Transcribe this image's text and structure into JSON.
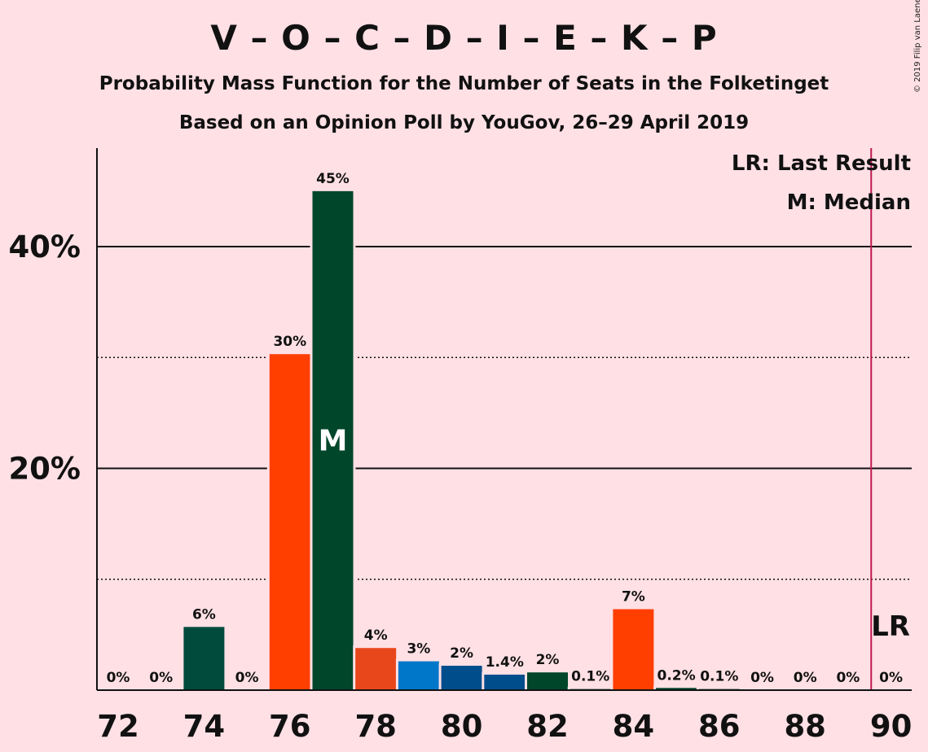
{
  "header": {
    "title": "V – O – C – D – I – E – K – P",
    "subtitle1": "Probability Mass Function for the Number of Seats in the Folketinget",
    "subtitle2": "Based on an Opinion Poll by YouGov, 26–29 April 2019",
    "copyright": "© 2019 Filip van Laenen"
  },
  "legend": {
    "last_result": "LR: Last Result",
    "median": "M: Median"
  },
  "chart_data": {
    "type": "bar",
    "title": "V – O – C – D – I – E – K – P",
    "subtitle": "Probability Mass Function for the Number of Seats in the Folketinget",
    "x": [
      72,
      73,
      74,
      75,
      76,
      77,
      78,
      79,
      80,
      81,
      82,
      83,
      84,
      85,
      86,
      87,
      88,
      89,
      90
    ],
    "values": [
      0,
      0,
      5.7,
      0,
      30.3,
      45.0,
      3.8,
      2.6,
      2.2,
      1.4,
      1.6,
      0.1,
      7.3,
      0.2,
      0.1,
      0,
      0,
      0,
      0
    ],
    "labels": [
      "0%",
      "0%",
      "6%",
      "0%",
      "30%",
      "45%",
      "4%",
      "3%",
      "2%",
      "1.4%",
      "2%",
      "0.1%",
      "7%",
      "0.2%",
      "0.1%",
      "0%",
      "0%",
      "0%",
      "0%"
    ],
    "colors": [
      "#004b3c",
      "#004b3c",
      "#004b3c",
      "#004b3c",
      "#ff3f00",
      "#00462b",
      "#e8471c",
      "#0077c8",
      "#004d8c",
      "#004d8c",
      "#00462b",
      "#00462b",
      "#ff3f00",
      "#00462b",
      "#00462b",
      "#00462b",
      "#00462b",
      "#00462b",
      "#00462b"
    ],
    "x_ticks": [
      "72",
      "74",
      "76",
      "78",
      "80",
      "82",
      "84",
      "86",
      "88",
      "90"
    ],
    "y_ticks": [
      "20%",
      "40%"
    ],
    "ylim": [
      0,
      49
    ],
    "median": 77,
    "median_label": "M",
    "last_result": 89.5,
    "last_result_label": "LR",
    "last_result_color": "#c0184e",
    "grid": "solid lines at 20% and 40%, dotted lines at 10% and 30%",
    "legend_position": "top-right"
  }
}
